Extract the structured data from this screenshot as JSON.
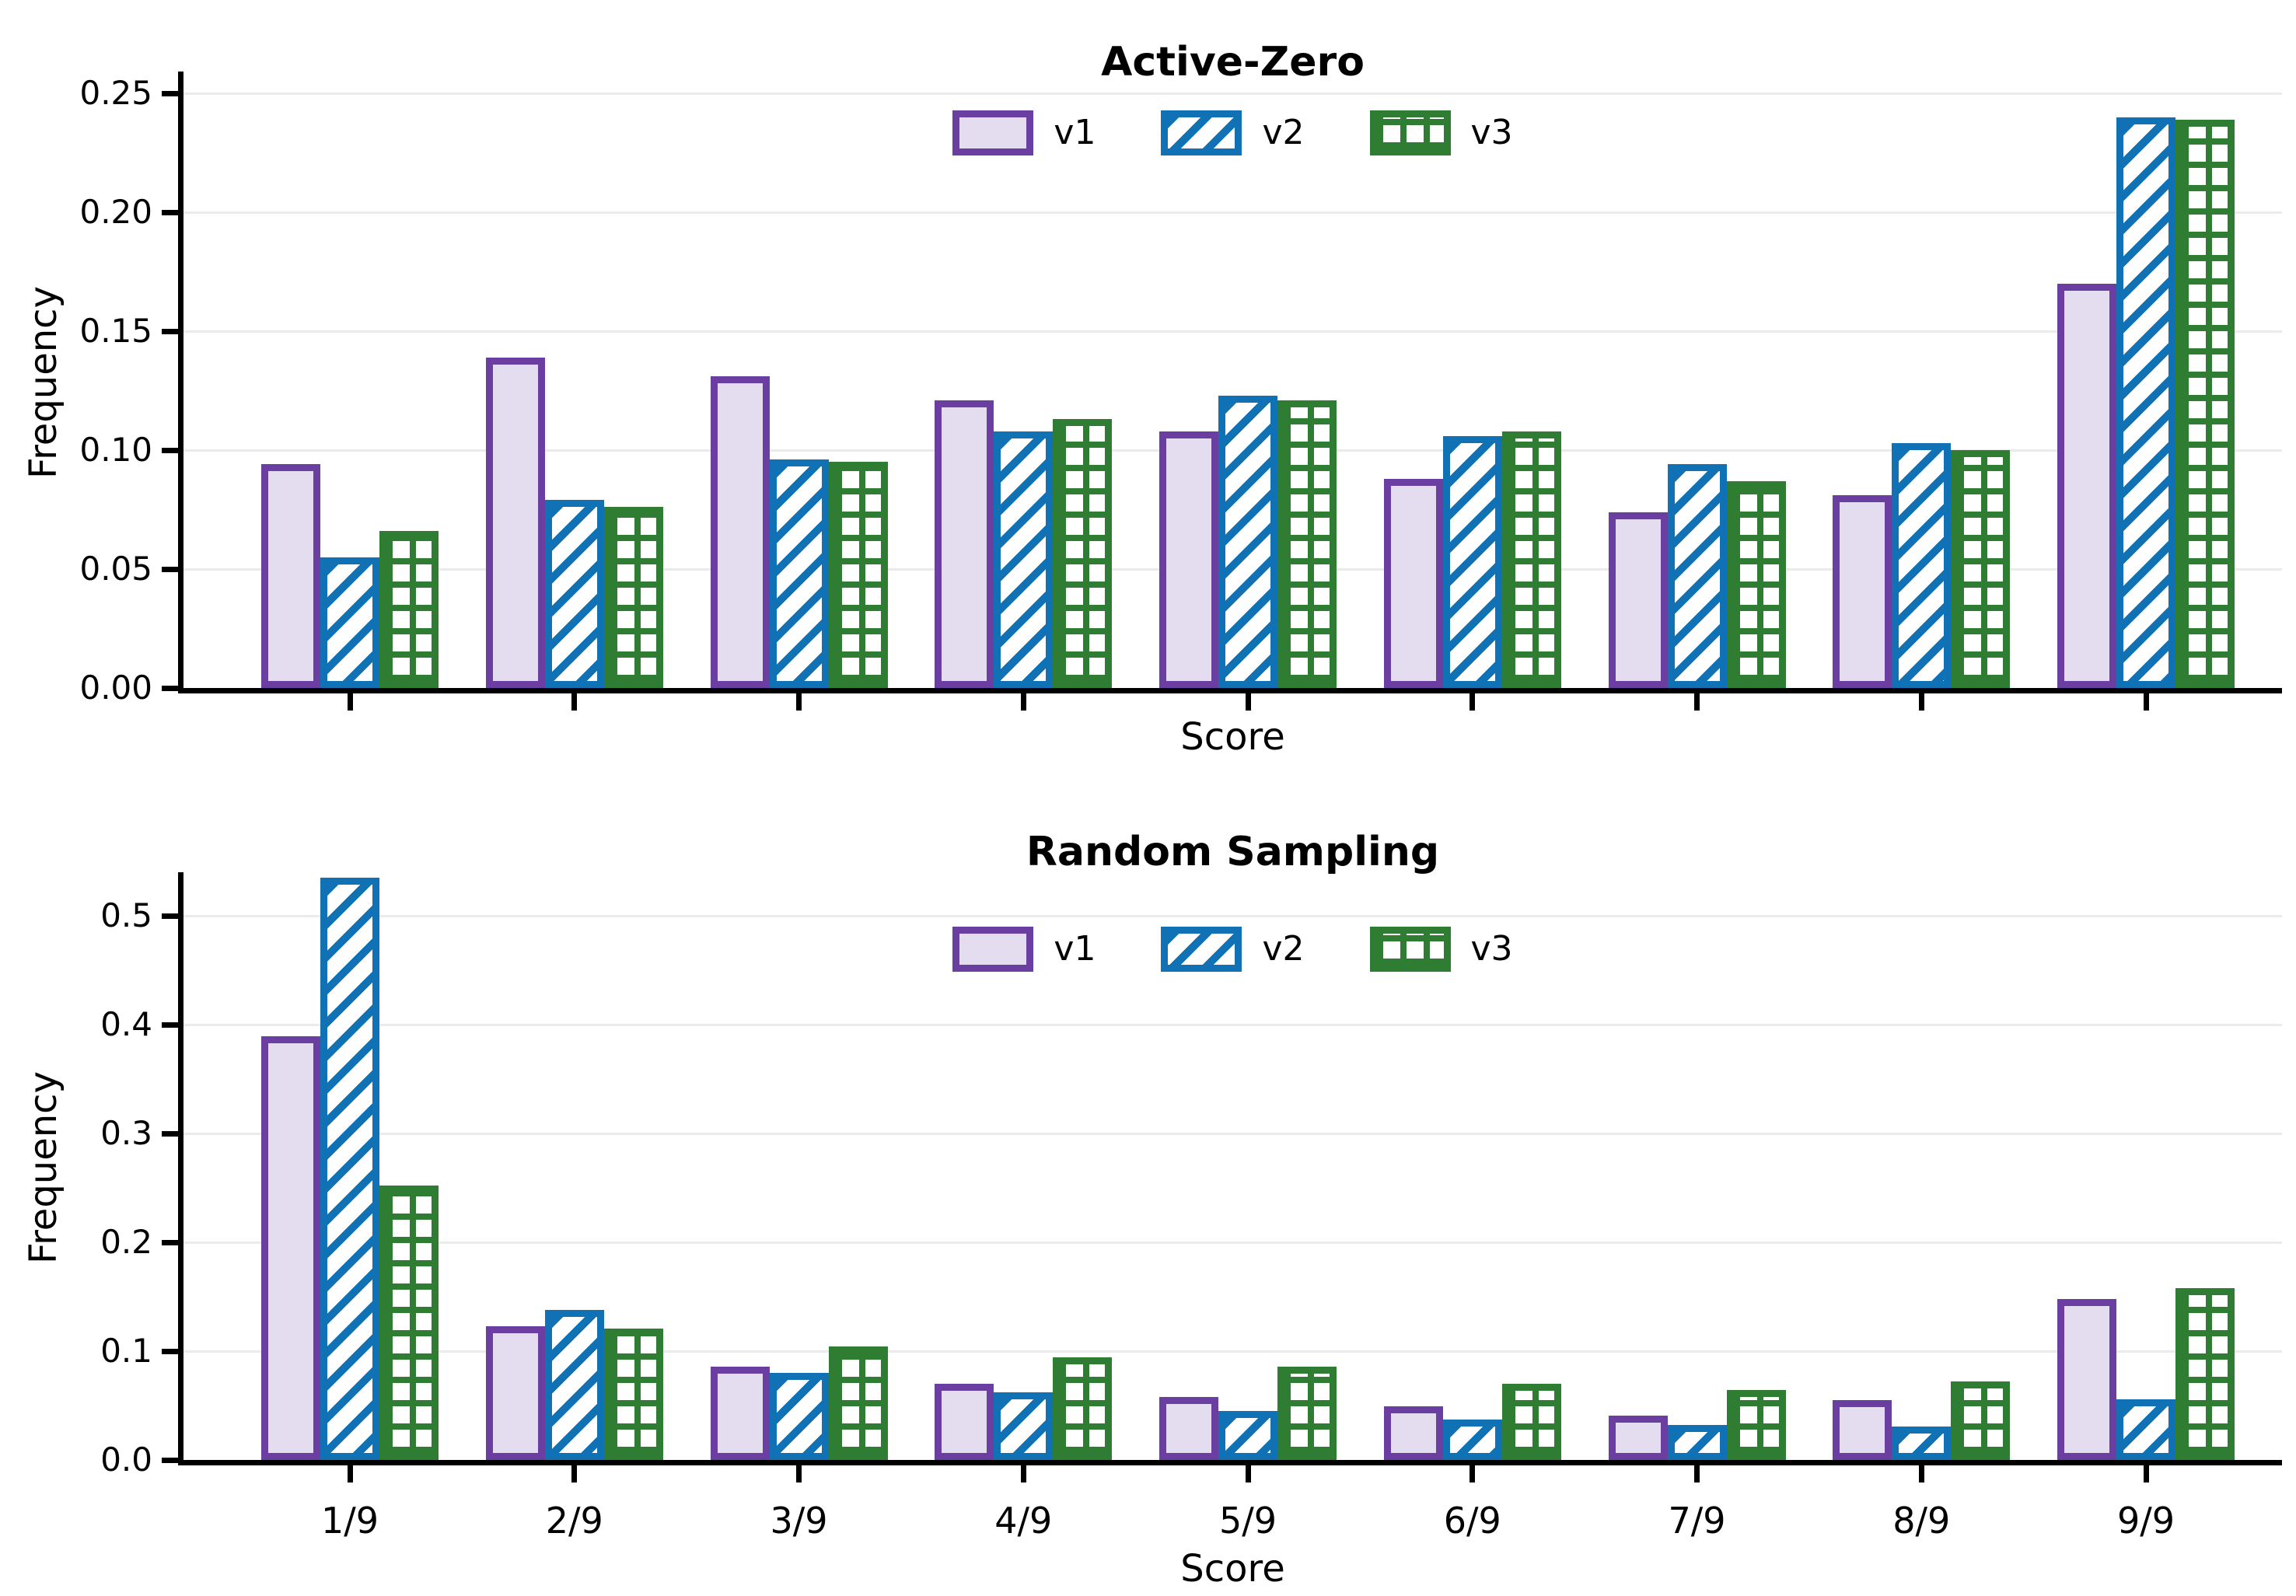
{
  "figure": {
    "background": "#ffffff"
  },
  "colors": {
    "v1_edge": "#6b3fa1",
    "v1_fill": "#e4dcef",
    "v2_edge": "#1072b4",
    "v2_fill": "#ffffff",
    "v3_edge": "#2e7d33",
    "v3_fill": "#ffffff",
    "axis": "#000000",
    "gridline": "#ebebeb",
    "text": "#000000"
  },
  "legend": {
    "entries": [
      "v1",
      "v2",
      "v3"
    ],
    "position": "upper center"
  },
  "chart_data": [
    {
      "type": "bar",
      "title": "Active-Zero",
      "xlabel": "Score",
      "ylabel": "Frequency",
      "categories": [
        "1/9",
        "2/9",
        "3/9",
        "4/9",
        "5/9",
        "6/9",
        "7/9",
        "8/9",
        "9/9"
      ],
      "x_tick_labels_visible": false,
      "ytick_labels": [
        "0.00",
        "0.05",
        "0.10",
        "0.15",
        "0.20",
        "0.25"
      ],
      "ytick_values": [
        0,
        0.05,
        0.1,
        0.15,
        0.2,
        0.25
      ],
      "ylim": [
        0,
        0.258
      ],
      "grid": "horizontal",
      "legend_entries": [
        "v1",
        "v2",
        "v3"
      ],
      "series": [
        {
          "name": "v1",
          "hatch": "none",
          "values": [
            0.094,
            0.139,
            0.131,
            0.121,
            0.108,
            0.088,
            0.074,
            0.081,
            0.17
          ]
        },
        {
          "name": "v2",
          "hatch": "diagonal",
          "values": [
            0.055,
            0.079,
            0.096,
            0.108,
            0.123,
            0.106,
            0.094,
            0.103,
            0.24
          ]
        },
        {
          "name": "v3",
          "hatch": "grid",
          "values": [
            0.066,
            0.076,
            0.095,
            0.113,
            0.121,
            0.108,
            0.087,
            0.1,
            0.239
          ]
        }
      ]
    },
    {
      "type": "bar",
      "title": "Random Sampling",
      "xlabel": "Score",
      "ylabel": "Frequency",
      "categories": [
        "1/9",
        "2/9",
        "3/9",
        "4/9",
        "5/9",
        "6/9",
        "7/9",
        "8/9",
        "9/9"
      ],
      "x_tick_labels_visible": true,
      "ytick_labels": [
        "0.0",
        "0.1",
        "0.2",
        "0.3",
        "0.4",
        "0.5"
      ],
      "ytick_values": [
        0,
        0.1,
        0.2,
        0.3,
        0.4,
        0.5
      ],
      "ylim": [
        0,
        0.54
      ],
      "grid": "horizontal",
      "legend_entries": [
        "v1",
        "v2",
        "v3"
      ],
      "series": [
        {
          "name": "v1",
          "hatch": "none",
          "values": [
            0.389,
            0.123,
            0.086,
            0.07,
            0.058,
            0.049,
            0.041,
            0.055,
            0.148
          ]
        },
        {
          "name": "v2",
          "hatch": "diagonal",
          "values": [
            0.535,
            0.138,
            0.08,
            0.062,
            0.045,
            0.037,
            0.032,
            0.031,
            0.056
          ]
        },
        {
          "name": "v3",
          "hatch": "grid",
          "values": [
            0.252,
            0.121,
            0.104,
            0.094,
            0.086,
            0.07,
            0.064,
            0.072,
            0.158
          ]
        }
      ]
    }
  ]
}
